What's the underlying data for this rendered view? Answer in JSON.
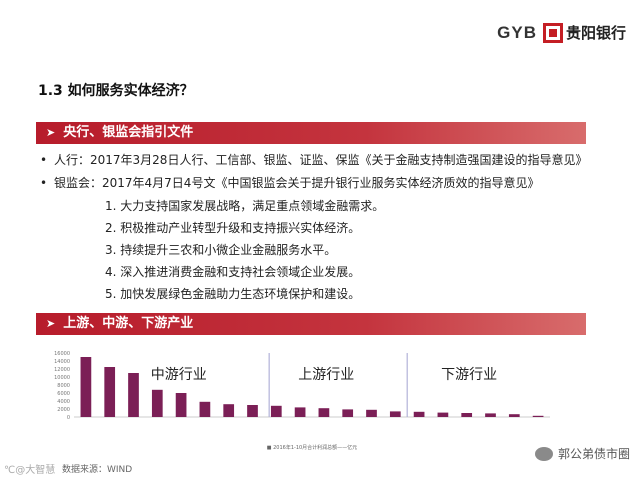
{
  "header": {
    "logo_text": "GYB",
    "bank_name": "贵阳银行",
    "brand_color": "#c41e24"
  },
  "title": "1.3  如何服务实体经济？",
  "sections": [
    {
      "label": "央行、银监会指引文件"
    },
    {
      "label": "上游、中游、下游产业"
    }
  ],
  "bullets": [
    {
      "marker": "•",
      "text": "人行：2017年3月28日人行、工信部、银监、证监、保监《关于金融支持制造强国建设的指导意见》"
    },
    {
      "marker": "•",
      "text": "银监会：2017年4月7日4号文《中国银监会关于提升银行业服务实体经济质效的指导意见》"
    }
  ],
  "numbered_items": [
    "1. 大力支持国家发展战略，满足重点领域金融需求。",
    "2. 积极推动产业转型升级和支持振兴实体经济。",
    "3. 持续提升三农和小微企业金融服务水平。",
    "4. 深入推进消费金融和支持社会领域企业发展。",
    "5. 加快发展绿色金融助力生态环境保护和建设。"
  ],
  "chart_data": {
    "type": "bar",
    "ylim": [
      0,
      16000
    ],
    "yticks": [
      "16000",
      "14000",
      "12000",
      "10000",
      "8000",
      "6000",
      "4000",
      "2000",
      "0"
    ],
    "values": [
      15000,
      12500,
      11000,
      6800,
      6000,
      3800,
      3200,
      3000,
      2800,
      2400,
      2200,
      1900,
      1800,
      1400,
      1300,
      1100,
      1000,
      900,
      700,
      300
    ],
    "bar_color": "#7b1f56",
    "group_labels": [
      "中游行业",
      "上游行业",
      "下游行业"
    ],
    "legend": "■ 2016年1-10月合计利润总额——亿元"
  },
  "watermarks": {
    "left": "℃@大智慧",
    "source": "数据来源：WIND",
    "right": "郭公弟债市圈"
  }
}
